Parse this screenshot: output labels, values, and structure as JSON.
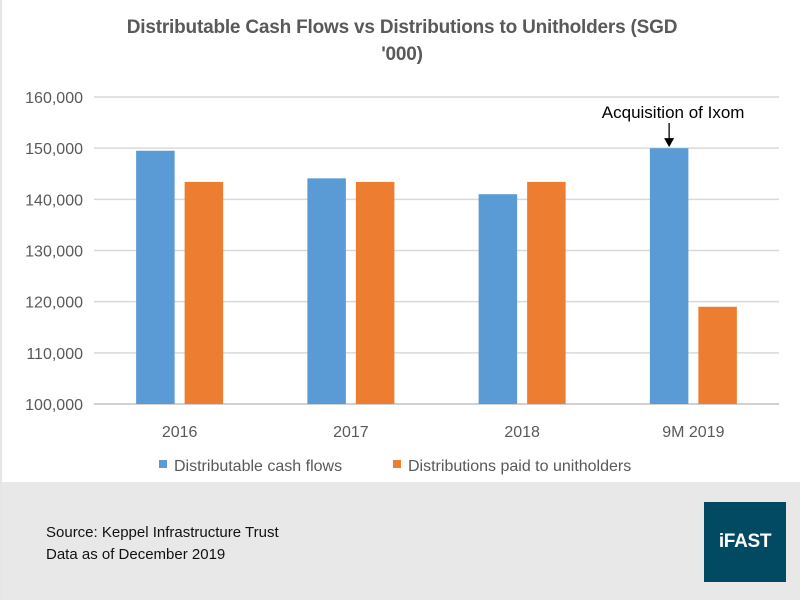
{
  "chart_data": {
    "type": "bar",
    "title": "Distributable Cash Flows vs Distributions to Unitholders (SGD '000)",
    "title_lines": [
      "Distributable Cash Flows vs Distributions to Unitholders (SGD",
      "'000)"
    ],
    "xlabel": "",
    "ylabel": "",
    "categories": [
      "2016",
      "2017",
      "2018",
      "9M 2019"
    ],
    "series": [
      {
        "name": "Distributable cash flows",
        "color": "#5b9bd5",
        "values": [
          149500,
          144100,
          141000,
          150000
        ]
      },
      {
        "name": "Distributions paid to unitholders",
        "color": "#ed7d31",
        "values": [
          143400,
          143400,
          143400,
          119000
        ]
      }
    ],
    "ylim": [
      100000,
      160000
    ],
    "yticks": [
      100000,
      110000,
      120000,
      130000,
      140000,
      150000,
      160000
    ],
    "ytick_labels": [
      "100,000",
      "110,000",
      "120,000",
      "130,000",
      "140,000",
      "150,000",
      "160,000"
    ],
    "grid": true,
    "legend_position": "bottom",
    "annotations": [
      {
        "text": "Acquisition of Ixom",
        "category": "9M 2019",
        "series": "Distributable cash flows",
        "arrow": true
      }
    ]
  },
  "footer": {
    "source": "Source: Keppel Infrastructure Trust",
    "data_as_of": "Data as of December 2019",
    "logo_text": "iFAST",
    "logo_color": "#014a62",
    "background": "#e8e8e8"
  }
}
